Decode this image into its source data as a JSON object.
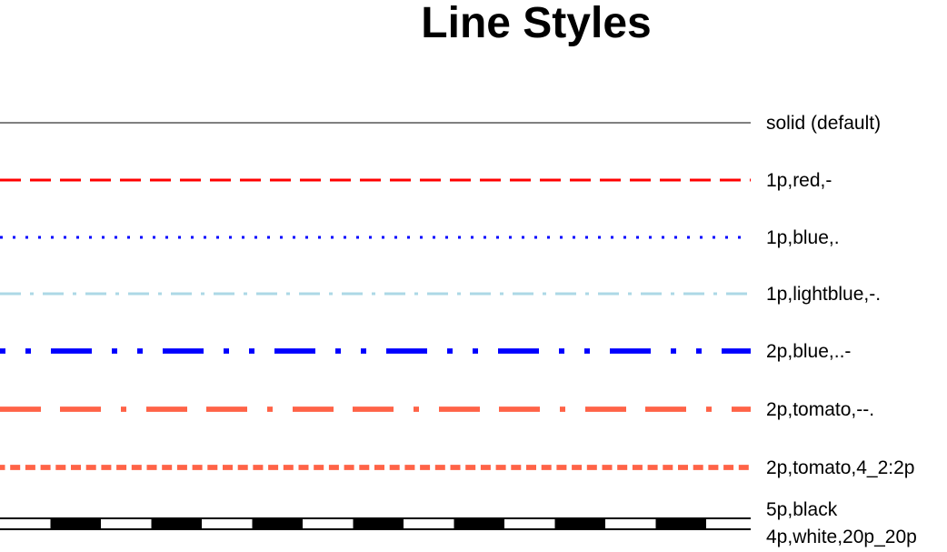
{
  "title": "Line Styles",
  "lines": [
    {
      "label": "solid (default)",
      "color": "#000000",
      "width_pt": 0.25,
      "style": "solid"
    },
    {
      "label": "1p,red,-",
      "color": "#ff0000",
      "width_pt": 1,
      "style": "-"
    },
    {
      "label": "1p,blue,.",
      "color": "#0000ff",
      "width_pt": 1,
      "style": "."
    },
    {
      "label": "1p,lightblue,-.",
      "color": "#add8e6",
      "width_pt": 1,
      "style": "-."
    },
    {
      "label": "2p,blue,..-",
      "color": "#0000ff",
      "width_pt": 2,
      "style": "..-"
    },
    {
      "label": "2p,tomato,--.",
      "color": "#ff6347",
      "width_pt": 2,
      "style": "--."
    },
    {
      "label": "2p,tomato,4_2:2p",
      "color": "#ff6347",
      "width_pt": 2,
      "style": "4_2:2p"
    }
  ],
  "composite": {
    "label_1": "5p,black",
    "label_2": "4p,white,20p_20p",
    "outer_color": "#000000",
    "inner_color": "#ffffff"
  }
}
